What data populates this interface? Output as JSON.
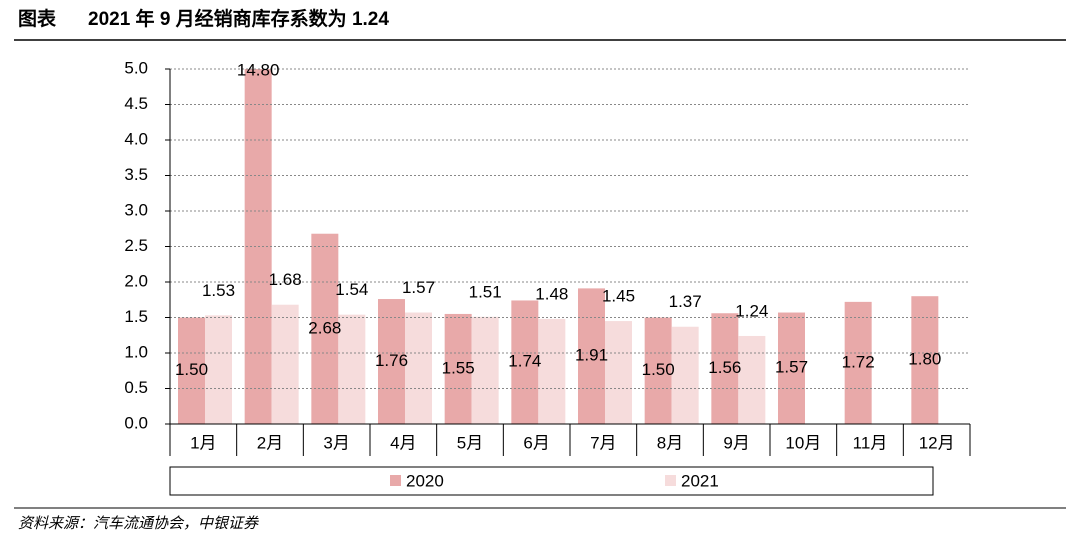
{
  "chart_data": {
    "type": "bar",
    "title_prefix": "图表",
    "title": "2021 年 9 月经销商库存系数为 1.24",
    "categories": [
      "1月",
      "2月",
      "3月",
      "4月",
      "5月",
      "6月",
      "7月",
      "8月",
      "9月",
      "10月",
      "11月",
      "12月"
    ],
    "series": [
      {
        "name": "2020",
        "color": "#e8a9a9",
        "values": [
          1.5,
          14.8,
          2.68,
          1.76,
          1.55,
          1.74,
          1.91,
          1.5,
          1.56,
          1.57,
          1.72,
          1.8
        ],
        "value_labels": [
          "1.50",
          "14.80",
          "2.68",
          "1.76",
          "1.55",
          "1.74",
          "1.91",
          "1.50",
          "1.56",
          "1.57",
          "1.72",
          "1.80"
        ]
      },
      {
        "name": "2021",
        "color": "#f6dcdc",
        "values": [
          1.53,
          1.68,
          1.54,
          1.57,
          1.51,
          1.48,
          1.45,
          1.37,
          1.24,
          null,
          null,
          null
        ],
        "value_labels": [
          "1.53",
          "1.68",
          "1.54",
          "1.57",
          "1.51",
          "1.48",
          "1.45",
          "1.37",
          "1.24",
          null,
          null,
          null
        ]
      }
    ],
    "ylim": [
      0,
      5
    ],
    "yticks": [
      {
        "value": 0,
        "label": "0.0"
      },
      {
        "value": 0.5,
        "label": "0.5"
      },
      {
        "value": 1,
        "label": "1.0"
      },
      {
        "value": 1.5,
        "label": "1.5"
      },
      {
        "value": 2,
        "label": "2.0"
      },
      {
        "value": 2.5,
        "label": "2.5"
      },
      {
        "value": 3,
        "label": "3.0"
      },
      {
        "value": 3.5,
        "label": "3.5"
      },
      {
        "value": 4,
        "label": "4.0"
      },
      {
        "value": 4.5,
        "label": "4.5"
      },
      {
        "value": 5,
        "label": "5.0"
      }
    ],
    "grid": true,
    "source": "资料来源：汽车流通协会，中银证券"
  }
}
